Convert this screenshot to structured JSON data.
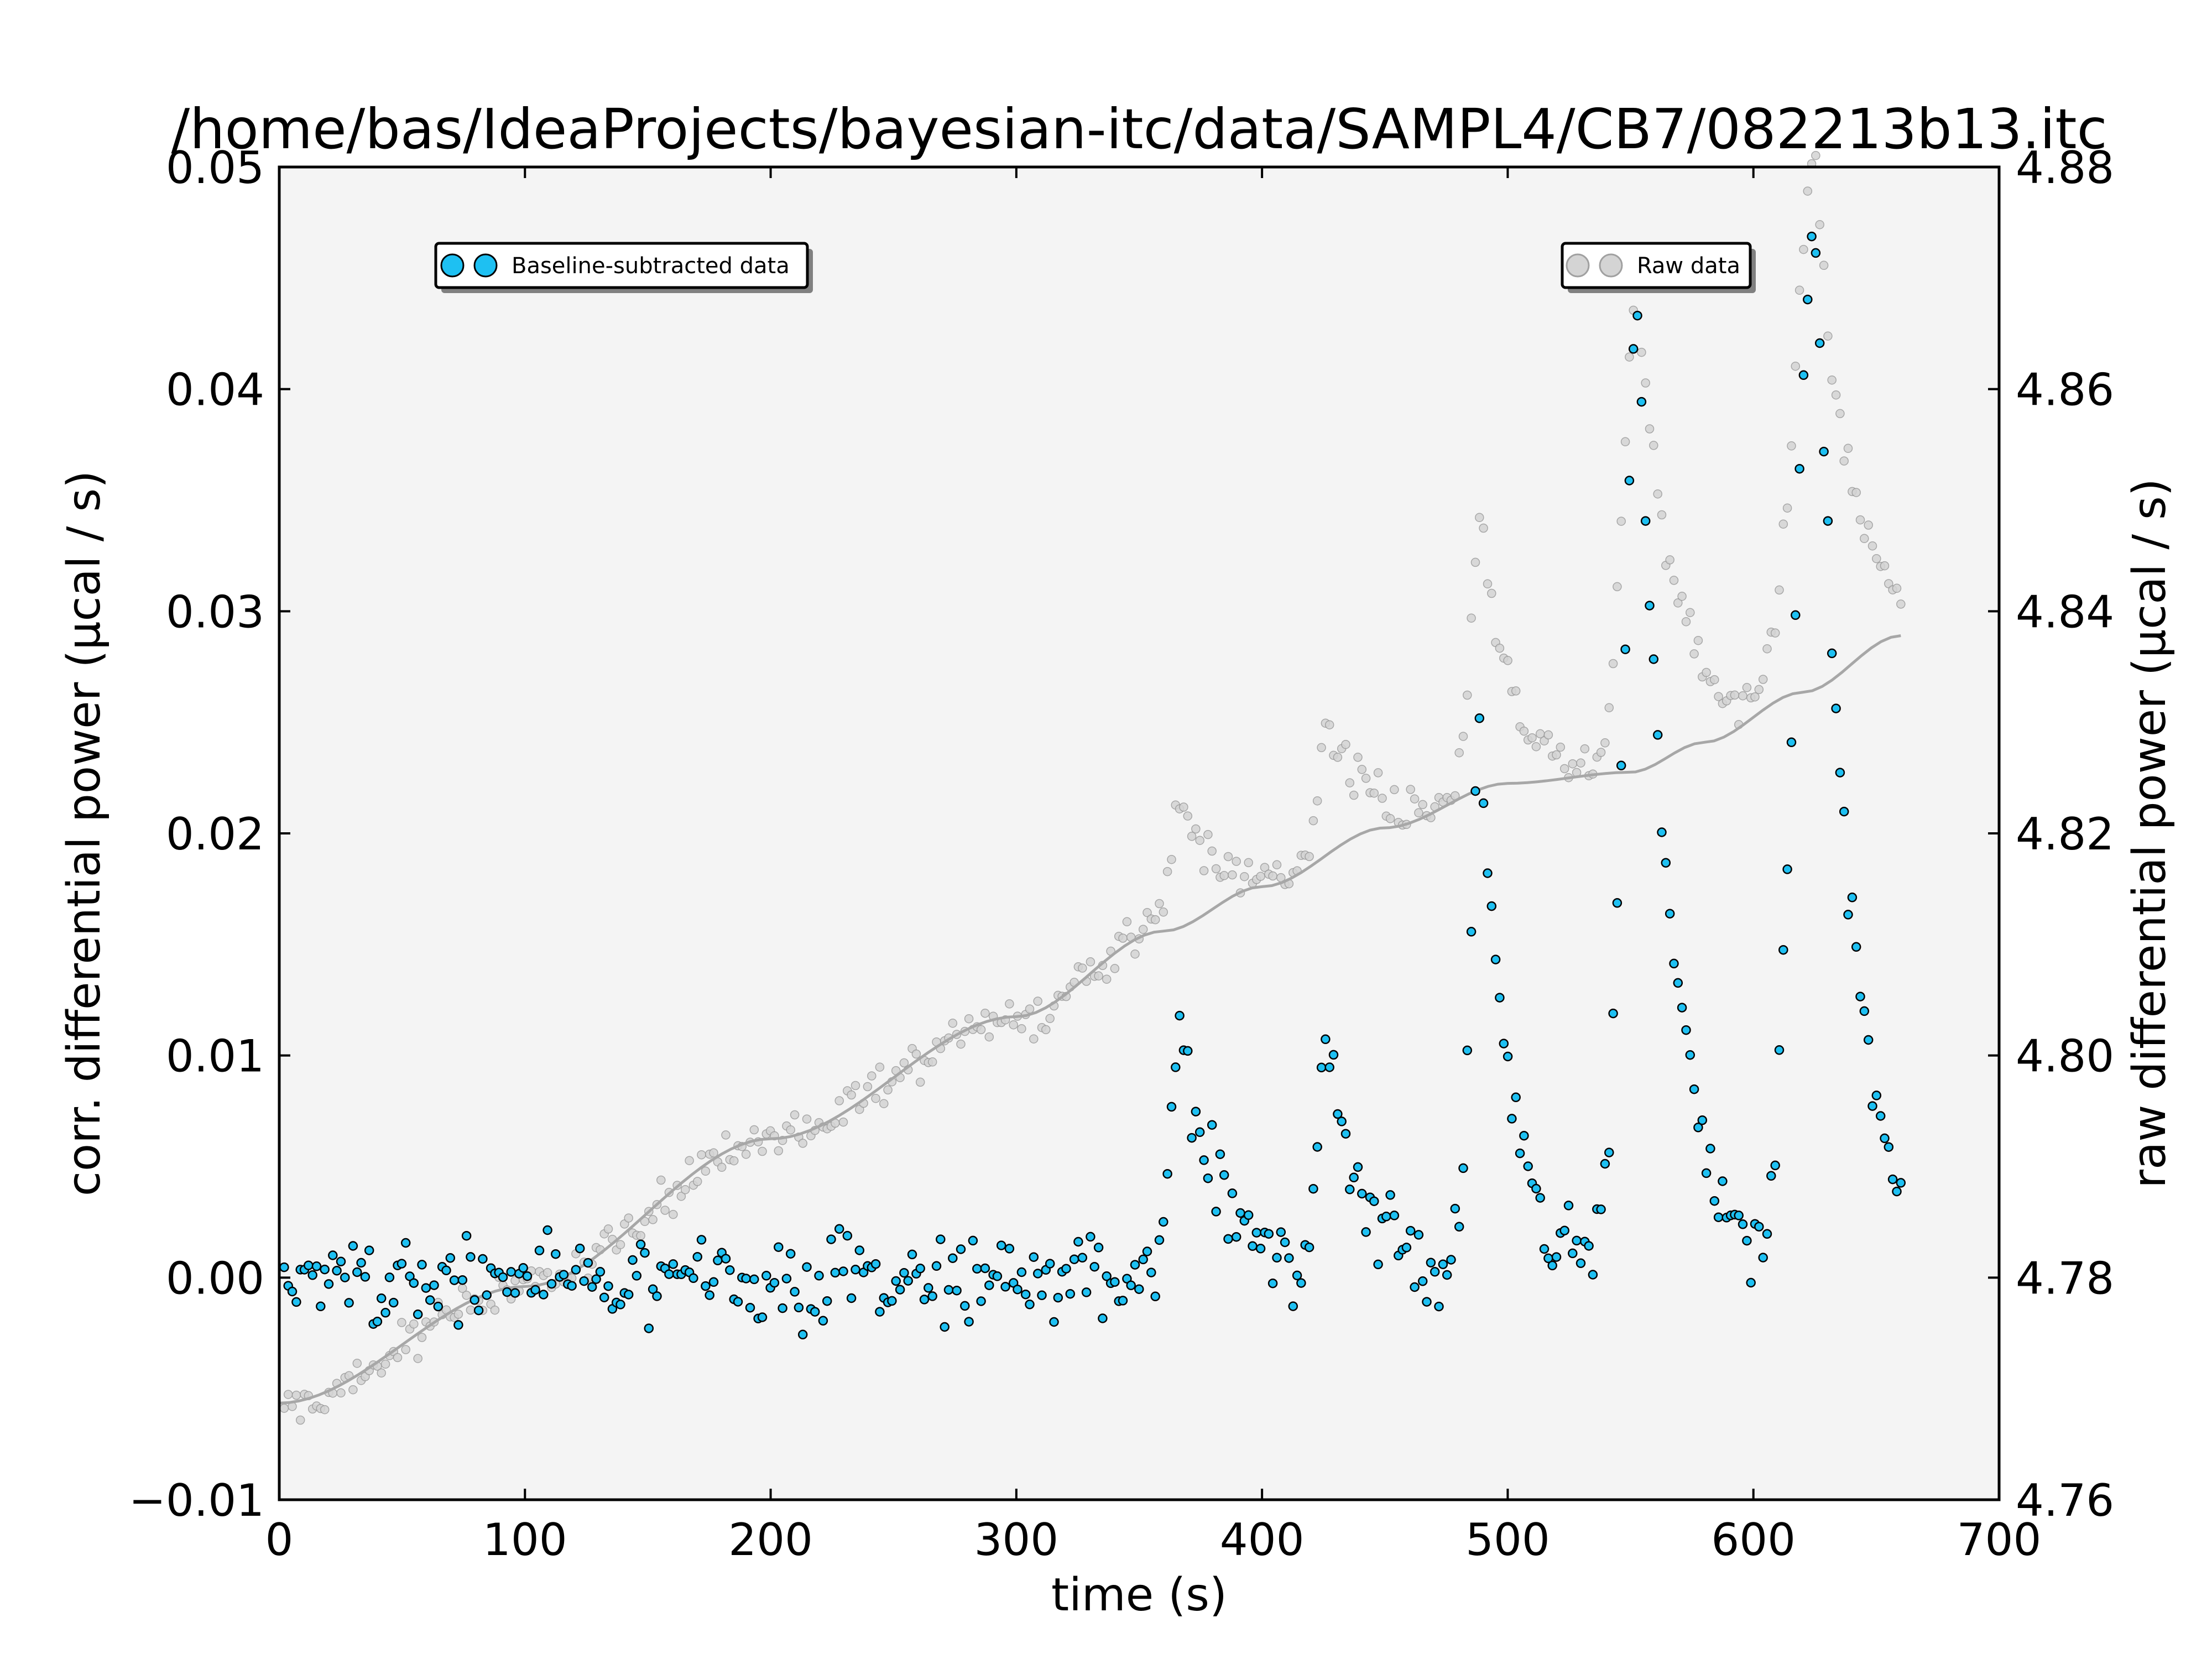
{
  "chart_data": {
    "type": "scatter",
    "title": "/home/bas/IdeaProjects/bayesian-itc/data/SAMPL4/CB7/082213b13.itc",
    "xlabel": "time (s)",
    "ylabel_left": "corr. differential power (μcal / s)",
    "ylabel_right": "raw differential power (μcal / s)",
    "xlim": [
      0,
      700
    ],
    "ylim_left": [
      -0.01,
      0.05
    ],
    "ylim_right": [
      4.76,
      4.88
    ],
    "x_ticks": [
      "0",
      "100",
      "200",
      "300",
      "400",
      "500",
      "600",
      "700"
    ],
    "y_ticks_left": [
      "−0.01",
      "0.00",
      "0.01",
      "0.02",
      "0.03",
      "0.04",
      "0.05"
    ],
    "y_ticks_right": [
      "4.76",
      "4.78",
      "4.80",
      "4.82",
      "4.84",
      "4.86",
      "4.88"
    ],
    "grid": false,
    "background_color": "#f4f4f4",
    "legends": [
      {
        "label": "Baseline-subtracted data",
        "placement": "upper-left",
        "marker_color": "#1ec0f2"
      },
      {
        "label": "Raw data",
        "placement": "upper-right",
        "marker_color": "#d4d4d4"
      }
    ],
    "sampling": {
      "t_start": 2,
      "t_end": 660,
      "n_points": 400,
      "noise_sd_corr": 0.0018,
      "noise_sd_raw": 0.0018
    },
    "baseline": {
      "axis": "right",
      "x": [
        0,
        100,
        200,
        300,
        360,
        400,
        450,
        500,
        550,
        580,
        620,
        660
      ],
      "y": [
        4.7687,
        4.7792,
        4.7925,
        4.8035,
        4.8112,
        4.8152,
        4.8205,
        4.8245,
        4.8255,
        4.8282,
        4.8327,
        4.8378
      ]
    },
    "injection_peaks": [
      {
        "time": 367,
        "peak": 0.0115,
        "rise": 4,
        "decay": 14
      },
      {
        "time": 427,
        "peak": 0.0115,
        "rise": 4,
        "decay": 14
      },
      {
        "time": 489,
        "peak": 0.0245,
        "rise": 4,
        "decay": 12
      },
      {
        "time": 553,
        "peak": 0.043,
        "rise": 6,
        "decay": 14
      },
      {
        "time": 625,
        "peak": 0.0475,
        "rise": 8,
        "decay": 14
      }
    ],
    "series": [
      {
        "name": "Baseline-subtracted data",
        "axis": "left",
        "color": "#1ec0f2"
      },
      {
        "name": "Raw data",
        "axis": "right",
        "color": "#d4d4d4"
      },
      {
        "axis": "right",
        "color": "#a7a7a7",
        "style": "line"
      }
    ]
  }
}
